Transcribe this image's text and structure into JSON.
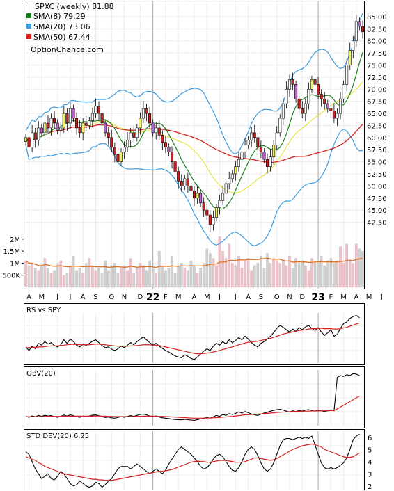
{
  "chart_data": [
    {
      "type": "candlestick",
      "title": "SPXC (weekly) 81.88",
      "watermark": "OptionChance.com",
      "legend": [
        {
          "label": "SMA(8) 79.29",
          "color": "#1a7f1a"
        },
        {
          "label": "SMA(20) 73.06",
          "color": "#3a9be0"
        },
        {
          "label": "SMA(50) 67.44",
          "color": "#d42020"
        }
      ],
      "legend_placement": "top-left",
      "ylim": [
        41,
        86
      ],
      "yticks": [
        "85.00",
        "82.50",
        "80.00",
        "77.50",
        "75.00",
        "72.50",
        "70.00",
        "67.50",
        "65.00",
        "62.50",
        "60.00",
        "57.50",
        "55.00",
        "52.50",
        "50.00",
        "47.50",
        "45.00",
        "42.50"
      ],
      "x_labels": [
        "A",
        "M",
        "J",
        "J",
        "A",
        "S",
        "O",
        "N",
        "D",
        "22",
        "F",
        "M",
        "A",
        "M",
        "J",
        "J",
        "A",
        "S",
        "O",
        "N",
        "D",
        "23",
        "F",
        "M",
        "A",
        "M",
        "J"
      ],
      "close": [
        60,
        58,
        61,
        59.5,
        62,
        61,
        63,
        62,
        64,
        63,
        61.5,
        62,
        65,
        63,
        66,
        64,
        62,
        61,
        63,
        62.5,
        63.5,
        65,
        66.5,
        65,
        63,
        61,
        60,
        58,
        56.5,
        55,
        57,
        58,
        59.5,
        61,
        60,
        62,
        64,
        66,
        65,
        63,
        61,
        62,
        60.5,
        59,
        58,
        57,
        55,
        53,
        51,
        50,
        51.5,
        50,
        49,
        47.5,
        48.5,
        46.5,
        45,
        44,
        42,
        43.5,
        45.5,
        47,
        48.5,
        50.5,
        51.5,
        52.5,
        54,
        55.5,
        57,
        58.5,
        59.5,
        61,
        60,
        58,
        57,
        55.5,
        54,
        56,
        58.5,
        61,
        64,
        67,
        70,
        72,
        71,
        68,
        66,
        65,
        67,
        70,
        72,
        71,
        69,
        68,
        67,
        66,
        65.5,
        64,
        65,
        68,
        71,
        75,
        78,
        80,
        84,
        83,
        81.88
      ],
      "volume_axis": [
        "2M",
        "1.5M",
        "1M",
        "500K"
      ],
      "volume_colors": {
        "up": "#f0c0c8",
        "down": "#d0d0d0",
        "avg": "#e07020"
      },
      "volume": [
        1.1,
        0.9,
        1.0,
        0.8,
        0.7,
        0.9,
        1.2,
        0.8,
        0.6,
        0.7,
        1.0,
        1.1,
        0.5,
        0.6,
        0.9,
        1.3,
        0.7,
        0.8,
        0.6,
        1.0,
        1.2,
        0.9,
        0.7,
        0.8,
        0.6,
        1.1,
        0.7,
        0.9,
        1.0,
        0.6,
        0.8,
        0.9,
        0.7,
        1.2,
        0.6,
        0.8,
        1.0,
        0.9,
        0.7,
        1.1,
        0.8,
        0.6,
        1.5,
        0.9,
        0.7,
        0.8,
        1.3,
        0.6,
        0.9,
        1.0,
        0.8,
        0.7,
        1.1,
        0.9,
        0.6,
        0.8,
        1.0,
        1.6,
        1.4,
        1.2,
        0.9,
        2.1,
        1.5,
        1.2,
        1.8,
        1.0,
        0.9,
        1.3,
        0.8,
        1.1,
        1.2,
        0.7,
        0.9,
        1.0,
        1.3,
        0.8,
        1.4,
        1.0,
        1.2,
        1.1,
        1.0,
        1.1,
        0.9,
        1.3,
        0.8,
        1.2,
        1.0,
        1.1,
        0.9,
        0.7,
        1.2,
        1.0,
        1.0,
        1.3,
        0.9,
        1.1,
        1.2,
        1.0,
        1.1,
        1.7,
        1.0,
        1.8,
        1.1,
        1.0,
        1.8,
        1.6,
        1.5
      ]
    },
    {
      "type": "line",
      "title": "RS vs SPY",
      "series": [
        {
          "color": "#000000"
        },
        {
          "color": "#d42020"
        }
      ],
      "rs": [
        0.4,
        0.3,
        0.42,
        0.35,
        0.5,
        0.45,
        0.55,
        0.48,
        0.52,
        0.44,
        0.4,
        0.46,
        0.6,
        0.5,
        0.62,
        0.55,
        0.45,
        0.4,
        0.48,
        0.44,
        0.5,
        0.56,
        0.6,
        0.52,
        0.44,
        0.38,
        0.4,
        0.34,
        0.3,
        0.35,
        0.42,
        0.38,
        0.45,
        0.52,
        0.46,
        0.55,
        0.62,
        0.68,
        0.6,
        0.52,
        0.45,
        0.5,
        0.42,
        0.36,
        0.3,
        0.26,
        0.2,
        0.15,
        0.12,
        0.1,
        0.18,
        0.14,
        0.08,
        0.05,
        0.12,
        0.2,
        0.28,
        0.35,
        0.3,
        0.42,
        0.5,
        0.45,
        0.55,
        0.48,
        0.6,
        0.52,
        0.58,
        0.66,
        0.6,
        0.7,
        0.62,
        0.52,
        0.45,
        0.4,
        0.5,
        0.55,
        0.62,
        0.7,
        0.8,
        0.92,
        1.0,
        0.95,
        0.88,
        0.82,
        0.9,
        0.84,
        0.94,
        0.88,
        0.96,
        1.0,
        0.92,
        0.86,
        0.94,
        0.82,
        0.72,
        0.8,
        0.88,
        0.7,
        0.75,
        0.92,
        1.05,
        1.1,
        1.2,
        1.25,
        1.28,
        1.22
      ],
      "avg": [
        0.38,
        0.38,
        0.39,
        0.39,
        0.4,
        0.4,
        0.41,
        0.42,
        0.43,
        0.43,
        0.43,
        0.44,
        0.45,
        0.46,
        0.47,
        0.47,
        0.47,
        0.46,
        0.46,
        0.46,
        0.46,
        0.47,
        0.48,
        0.48,
        0.47,
        0.46,
        0.45,
        0.44,
        0.43,
        0.42,
        0.42,
        0.42,
        0.42,
        0.43,
        0.43,
        0.44,
        0.45,
        0.46,
        0.46,
        0.46,
        0.45,
        0.45,
        0.44,
        0.42,
        0.4,
        0.38,
        0.36,
        0.34,
        0.32,
        0.3,
        0.28,
        0.26,
        0.24,
        0.22,
        0.21,
        0.21,
        0.22,
        0.23,
        0.24,
        0.26,
        0.28,
        0.3,
        0.33,
        0.35,
        0.38,
        0.4,
        0.43,
        0.46,
        0.48,
        0.51,
        0.53,
        0.54,
        0.55,
        0.56,
        0.58,
        0.6,
        0.62,
        0.64,
        0.67,
        0.7,
        0.73,
        0.76,
        0.78,
        0.8,
        0.82,
        0.84,
        0.86,
        0.87,
        0.88,
        0.9,
        0.91,
        0.91,
        0.92,
        0.92,
        0.91,
        0.91,
        0.91,
        0.9,
        0.9,
        0.91,
        0.93,
        0.95,
        0.98,
        1.01,
        1.04,
        1.07
      ]
    },
    {
      "type": "line",
      "title": "OBV(20)",
      "series": [
        {
          "color": "#000000"
        },
        {
          "color": "#d42020"
        }
      ],
      "obv": [
        0.2,
        0.15,
        0.22,
        0.18,
        0.25,
        0.2,
        0.26,
        0.22,
        0.24,
        0.18,
        0.15,
        0.2,
        0.27,
        0.22,
        0.28,
        0.24,
        0.18,
        0.15,
        0.2,
        0.18,
        0.22,
        0.26,
        0.28,
        0.24,
        0.18,
        0.14,
        0.16,
        0.12,
        0.1,
        0.14,
        0.18,
        0.15,
        0.2,
        0.24,
        0.2,
        0.25,
        0.3,
        0.32,
        0.28,
        0.22,
        0.18,
        0.22,
        0.16,
        0.12,
        0.1,
        0.08,
        0.05,
        0.03,
        0.02,
        0.01,
        0.04,
        0.02,
        0.0,
        -0.02,
        0.02,
        0.06,
        0.1,
        0.14,
        0.1,
        0.18,
        0.25,
        0.2,
        0.3,
        0.25,
        0.35,
        0.3,
        0.36,
        0.44,
        0.38,
        0.46,
        0.4,
        0.32,
        0.28,
        0.25,
        0.32,
        0.38,
        0.42,
        0.48,
        0.52,
        0.56,
        0.58,
        0.54,
        0.48,
        0.44,
        0.5,
        0.46,
        0.52,
        0.48,
        0.54,
        0.56,
        0.52,
        0.48,
        0.54,
        0.5,
        0.46,
        0.5,
        0.54,
        0.5,
        2.3,
        2.4,
        2.35,
        2.45,
        2.4,
        2.5,
        2.48,
        2.4
      ],
      "avg": [
        0.18,
        0.18,
        0.18,
        0.19,
        0.19,
        0.19,
        0.2,
        0.2,
        0.2,
        0.2,
        0.2,
        0.2,
        0.21,
        0.21,
        0.21,
        0.21,
        0.21,
        0.21,
        0.21,
        0.21,
        0.21,
        0.21,
        0.22,
        0.22,
        0.21,
        0.21,
        0.2,
        0.2,
        0.19,
        0.19,
        0.19,
        0.19,
        0.19,
        0.19,
        0.19,
        0.2,
        0.2,
        0.21,
        0.21,
        0.21,
        0.21,
        0.21,
        0.2,
        0.2,
        0.19,
        0.18,
        0.17,
        0.16,
        0.15,
        0.14,
        0.13,
        0.12,
        0.11,
        0.1,
        0.1,
        0.1,
        0.1,
        0.11,
        0.11,
        0.12,
        0.13,
        0.14,
        0.16,
        0.17,
        0.19,
        0.2,
        0.22,
        0.24,
        0.26,
        0.28,
        0.29,
        0.3,
        0.31,
        0.32,
        0.33,
        0.35,
        0.36,
        0.38,
        0.39,
        0.41,
        0.42,
        0.43,
        0.44,
        0.45,
        0.46,
        0.46,
        0.47,
        0.47,
        0.48,
        0.48,
        0.49,
        0.49,
        0.49,
        0.5,
        0.5,
        0.5,
        0.51,
        0.51,
        0.6,
        0.7,
        0.8,
        0.9,
        1.0,
        1.1,
        1.2,
        1.3
      ]
    },
    {
      "type": "line",
      "title": "STD DEV(20) 6.25",
      "ylim": [
        1.7,
        6.5
      ],
      "yticks": [
        "6",
        "5",
        "4",
        "3",
        "2"
      ],
      "series": [
        {
          "color": "#000000"
        },
        {
          "color": "#d42020"
        }
      ],
      "std": [
        4.8,
        4.6,
        4.0,
        3.4,
        3.0,
        2.6,
        2.8,
        3.0,
        2.6,
        2.5,
        2.8,
        3.2,
        3.0,
        2.6,
        2.2,
        2.0,
        2.1,
        2.4,
        2.2,
        2.0,
        1.9,
        2.0,
        2.3,
        2.2,
        1.9,
        2.1,
        2.4,
        2.6,
        3.0,
        3.4,
        3.6,
        3.6,
        3.6,
        3.4,
        3.6,
        3.8,
        3.6,
        3.4,
        3.2,
        3.0,
        3.2,
        3.4,
        3.2,
        3.0,
        3.3,
        3.8,
        4.2,
        4.6,
        5.0,
        5.2,
        5.0,
        4.8,
        4.6,
        4.3,
        4.0,
        3.6,
        3.4,
        3.5,
        3.8,
        4.2,
        4.5,
        4.6,
        4.4,
        4.0,
        3.6,
        3.3,
        3.2,
        3.5,
        4.0,
        4.6,
        5.0,
        5.2,
        5.0,
        4.5,
        3.9,
        3.4,
        3.2,
        3.4,
        3.9,
        4.6,
        5.3,
        5.8,
        5.9,
        5.9,
        5.8,
        5.9,
        6.0,
        5.9,
        6.0,
        5.9,
        6.1,
        5.4,
        4.6,
        3.9,
        3.5,
        3.4,
        3.5,
        3.4,
        3.5,
        3.7,
        3.9,
        4.3,
        5.0,
        5.8,
        6.1,
        6.25
      ],
      "avg": [
        4.4,
        4.3,
        4.2,
        4.1,
        3.9,
        3.8,
        3.6,
        3.5,
        3.4,
        3.3,
        3.2,
        3.1,
        3.0,
        2.95,
        2.9,
        2.85,
        2.8,
        2.75,
        2.7,
        2.65,
        2.6,
        2.55,
        2.55,
        2.5,
        2.5,
        2.45,
        2.45,
        2.45,
        2.5,
        2.55,
        2.6,
        2.65,
        2.7,
        2.75,
        2.8,
        2.85,
        2.9,
        2.95,
        3.0,
        3.05,
        3.1,
        3.15,
        3.2,
        3.2,
        3.25,
        3.3,
        3.35,
        3.45,
        3.55,
        3.65,
        3.75,
        3.85,
        3.95,
        4.0,
        4.05,
        4.0,
        4.0,
        3.95,
        3.95,
        4.0,
        4.05,
        4.1,
        4.1,
        4.1,
        4.05,
        4.0,
        3.95,
        3.95,
        3.95,
        4.0,
        4.1,
        4.2,
        4.3,
        4.3,
        4.25,
        4.2,
        4.15,
        4.1,
        4.15,
        4.25,
        4.4,
        4.55,
        4.7,
        4.85,
        5.0,
        5.1,
        5.2,
        5.3,
        5.35,
        5.4,
        5.45,
        5.4,
        5.3,
        5.2,
        5.0,
        4.9,
        4.8,
        4.7,
        4.6,
        4.5,
        4.4,
        4.35,
        4.35,
        4.4,
        4.55,
        4.7
      ]
    }
  ]
}
